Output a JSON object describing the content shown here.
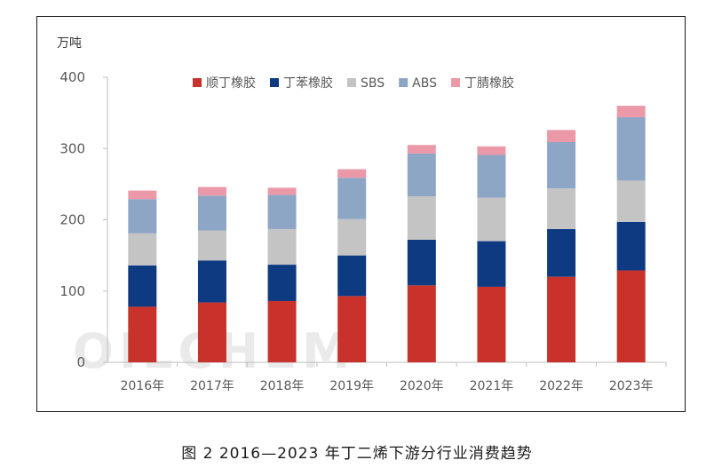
{
  "caption": "图 2  2016—2023 年丁二烯下游分行业消费趋势",
  "watermark": "OILCHEM",
  "chart_data": {
    "type": "bar",
    "stacked": true,
    "unit_label": "万吨",
    "categories": [
      "2016年",
      "2017年",
      "2018年",
      "2019年",
      "2020年",
      "2021年",
      "2022年",
      "2023年"
    ],
    "y_ticks": [
      "0",
      "100",
      "200",
      "300",
      "400"
    ],
    "ylim": [
      0,
      400
    ],
    "grid": false,
    "legend_position": "top",
    "series": [
      {
        "name": "顺丁橡胶",
        "color": "#c8322a",
        "values": [
          78,
          84,
          86,
          93,
          108,
          106,
          120,
          129
        ]
      },
      {
        "name": "丁苯橡胶",
        "color": "#0e3a82",
        "values": [
          58,
          59,
          51,
          57,
          64,
          64,
          67,
          68
        ]
      },
      {
        "name": "SBS",
        "color": "#c4c4c4",
        "values": [
          45,
          42,
          50,
          51,
          61,
          61,
          57,
          58
        ]
      },
      {
        "name": "ABS",
        "color": "#8ea6c6",
        "values": [
          48,
          49,
          48,
          58,
          60,
          60,
          65,
          89
        ]
      },
      {
        "name": "丁腈橡胶",
        "color": "#eb98a8",
        "values": [
          12,
          12,
          10,
          12,
          12,
          12,
          17,
          16
        ]
      }
    ]
  }
}
